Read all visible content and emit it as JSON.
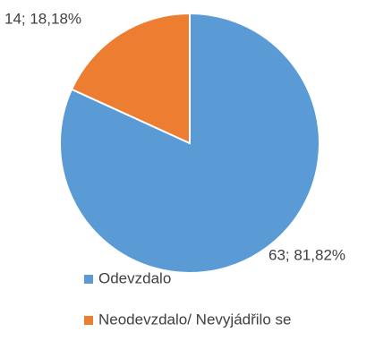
{
  "chart_data": {
    "type": "pie",
    "categories": [
      "Odevzdalo",
      "Neodevzdalo/ Nevyjádřilo se"
    ],
    "values": [
      63,
      14
    ],
    "value_labels": [
      "63; 81,82%",
      "14; 18,18%"
    ],
    "colors": [
      "#5b9bd5",
      "#ed7d31"
    ],
    "legend": "bottom"
  }
}
